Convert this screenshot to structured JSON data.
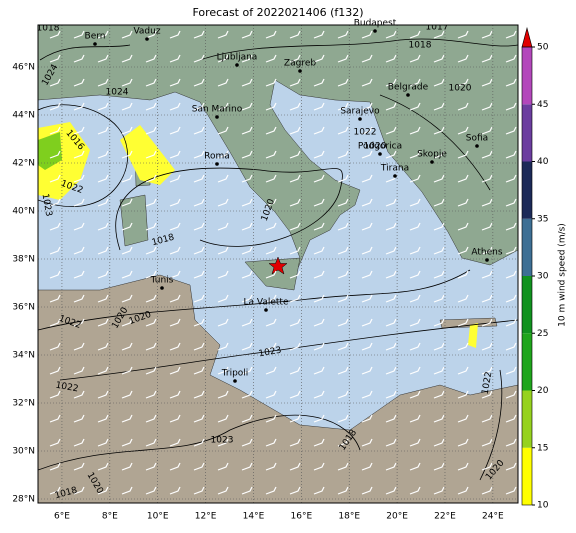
{
  "title": "Forecast of 2022021406 (f132)",
  "lon_ticks": [
    {
      "value": 6,
      "label": "6°E"
    },
    {
      "value": 8,
      "label": "8°E"
    },
    {
      "value": 10,
      "label": "10°E"
    },
    {
      "value": 12,
      "label": "12°E"
    },
    {
      "value": 14,
      "label": "14°E"
    },
    {
      "value": 16,
      "label": "16°E"
    },
    {
      "value": 18,
      "label": "18°E"
    },
    {
      "value": 20,
      "label": "20°E"
    },
    {
      "value": 22,
      "label": "22°E"
    },
    {
      "value": 24,
      "label": "24°E"
    }
  ],
  "lat_ticks": [
    {
      "value": 28,
      "label": "28°N"
    },
    {
      "value": 30,
      "label": "30°N"
    },
    {
      "value": 32,
      "label": "32°N"
    },
    {
      "value": 34,
      "label": "34°N"
    },
    {
      "value": 36,
      "label": "36°N"
    },
    {
      "value": 38,
      "label": "38°N"
    },
    {
      "value": 40,
      "label": "40°N"
    },
    {
      "value": 42,
      "label": "42°N"
    },
    {
      "value": 44,
      "label": "44°N"
    },
    {
      "value": 46,
      "label": "46°N"
    }
  ],
  "cities": [
    "Bern",
    "Vaduz",
    "Budapest",
    "Ljubljana",
    "Zagreb",
    "San Marino",
    "Belgrade",
    "Sarajevo",
    "Podgorica",
    "Roma",
    "Skopje",
    "Sofia",
    "Tirana",
    "Athens",
    "Tunis",
    "La Valette",
    "Tripoli"
  ],
  "isobar_labels": [
    "1018",
    "1024",
    "1016",
    "1022",
    "1023",
    "1018",
    "1020",
    "1022",
    "1020",
    "1020",
    "1023",
    "1022",
    "1023",
    "1024",
    "1022",
    "1020",
    "1018",
    "1020",
    "1018",
    "1020",
    "1017",
    "1018",
    "1020",
    "1022"
  ],
  "colorbar": {
    "label": "10 m wind speed (m/s)",
    "ticks": [
      10,
      15,
      20,
      25,
      30,
      35,
      40,
      45,
      50
    ],
    "colors": [
      "#ffff00",
      "#96d21e",
      "#1fa51c",
      "#11921f",
      "#3d6f94",
      "#1c2a58",
      "#6b3d9f",
      "#b347bb"
    ],
    "extend_color": "#e00000"
  }
}
